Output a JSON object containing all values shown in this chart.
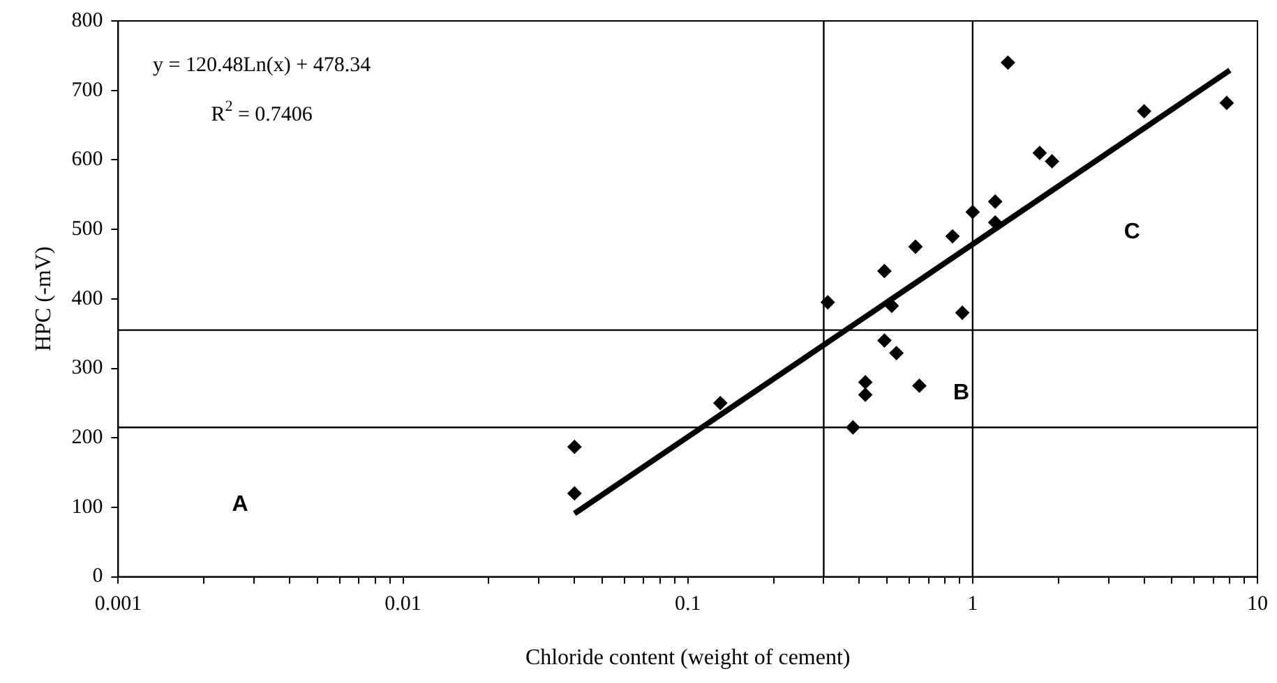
{
  "chart_data": {
    "type": "scatter",
    "xlabel": "Chloride content (weight of cement)",
    "ylabel": "HPC (-mV)",
    "log": "x",
    "marker": "diamond",
    "grid": false,
    "xlim": [
      0.001,
      10
    ],
    "ylim": [
      0,
      800
    ],
    "xticks": [
      0.001,
      {
        "value": 0.002,
        "label": null
      },
      {
        "value": 0.003,
        "label": null
      },
      {
        "value": 0.004,
        "label": null
      },
      {
        "value": 0.005,
        "label": null
      },
      {
        "value": 0.006,
        "label": null
      },
      {
        "value": 0.007,
        "label": null
      },
      {
        "value": 0.008,
        "label": null
      },
      {
        "value": 0.009,
        "label": null
      },
      0.01,
      {
        "value": 0.02,
        "label": null
      },
      {
        "value": 0.03,
        "label": null
      },
      {
        "value": 0.04,
        "label": null
      },
      {
        "value": 0.05,
        "label": null
      },
      {
        "value": 0.06,
        "label": null
      },
      {
        "value": 0.07,
        "label": null
      },
      {
        "value": 0.08,
        "label": null
      },
      {
        "value": 0.09,
        "label": null
      },
      0.1,
      {
        "value": 0.2,
        "label": null
      },
      {
        "value": 0.3,
        "label": null
      },
      {
        "value": 0.4,
        "label": null
      },
      {
        "value": 0.5,
        "label": null
      },
      {
        "value": 0.6,
        "label": null
      },
      {
        "value": 0.7,
        "label": null
      },
      {
        "value": 0.8,
        "label": null
      },
      {
        "value": 0.9,
        "label": null
      },
      1,
      {
        "value": 2,
        "label": null
      },
      {
        "value": 3,
        "label": null
      },
      {
        "value": 4,
        "label": null
      },
      {
        "value": 5,
        "label": null
      },
      {
        "value": 6,
        "label": null
      },
      {
        "value": 7,
        "label": null
      },
      {
        "value": 8,
        "label": null
      },
      {
        "value": 9,
        "label": null
      },
      10
    ],
    "yticks": [
      0,
      100,
      200,
      300,
      400,
      500,
      600,
      700,
      800
    ],
    "series": [
      {
        "color": "#000000",
        "x": [
          0.04,
          0.04,
          0.13,
          0.31,
          0.38,
          0.42,
          0.42,
          0.49,
          0.49,
          0.52,
          0.54,
          0.63,
          0.65,
          0.85,
          0.92,
          1.0,
          1.2,
          1.2,
          1.33,
          1.72,
          1.9,
          4.0,
          7.8
        ],
        "values": [
          187,
          120,
          250,
          395,
          215,
          280,
          262,
          440,
          340,
          390,
          322,
          475,
          275,
          490,
          380,
          525,
          540,
          510,
          740,
          610,
          598,
          670,
          682
        ]
      },
      {
        "type": "line",
        "color": "#000000",
        "marker": "none",
        "x": [
          0.04,
          8
        ],
        "values": [
          91,
          729
        ]
      }
    ],
    "ref_lines": [
      {
        "axis": "x",
        "value": 0.3,
        "color": "#000000"
      },
      {
        "axis": "x",
        "value": 1,
        "color": "#000000"
      },
      {
        "axis": "y",
        "value": 355,
        "color": "#000000"
      },
      {
        "axis": "y",
        "value": 215,
        "color": "#000000"
      }
    ],
    "annotations": [
      "y = 120.48Ln(x) + 478.34",
      "R$^{2}$ = 0.7406",
      "A",
      "B",
      "C"
    ]
  }
}
